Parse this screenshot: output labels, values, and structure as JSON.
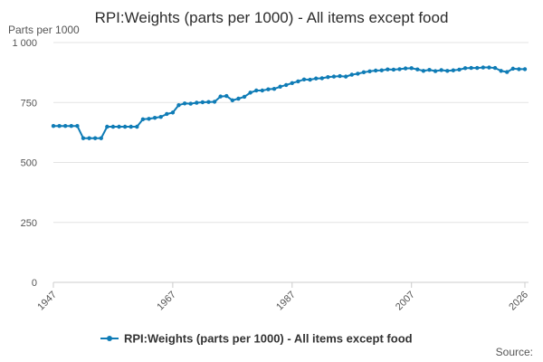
{
  "chart_data": {
    "type": "line",
    "title": "RPI:Weights (parts per 1000) - All items except food",
    "ylabel": "Parts per 1000",
    "xlabel": "",
    "xlim": [
      1947,
      2026
    ],
    "ylim": [
      0,
      1000
    ],
    "x_ticks": [
      1947,
      1967,
      1987,
      2007,
      2026
    ],
    "y_ticks": [
      0,
      250,
      500,
      750,
      1000
    ],
    "y_tick_labels": [
      "0",
      "250",
      "500",
      "750",
      "1 000"
    ],
    "grid": true,
    "legend_position": "bottom",
    "series_color": "#0f7cb6",
    "series": [
      {
        "name": "RPI:Weights (parts per 1000) - All items except food",
        "x": [
          1947,
          1948,
          1949,
          1950,
          1951,
          1952,
          1953,
          1954,
          1955,
          1956,
          1957,
          1958,
          1959,
          1960,
          1961,
          1962,
          1963,
          1964,
          1965,
          1966,
          1967,
          1968,
          1969,
          1970,
          1971,
          1972,
          1973,
          1974,
          1975,
          1976,
          1977,
          1978,
          1979,
          1980,
          1981,
          1982,
          1983,
          1984,
          1985,
          1986,
          1987,
          1988,
          1989,
          1990,
          1991,
          1992,
          1993,
          1994,
          1995,
          1996,
          1997,
          1998,
          1999,
          2000,
          2001,
          2002,
          2003,
          2004,
          2005,
          2006,
          2007,
          2008,
          2009,
          2010,
          2011,
          2012,
          2013,
          2014,
          2015,
          2016,
          2017,
          2018,
          2019,
          2020,
          2021,
          2022,
          2023,
          2024,
          2025,
          2026
        ],
        "values": [
          652,
          652,
          652,
          652,
          652,
          601,
          601,
          601,
          601,
          649,
          649,
          649,
          649,
          649,
          649,
          680,
          682,
          686,
          690,
          702,
          708,
          739,
          746,
          745,
          749,
          751,
          752,
          753,
          775,
          777,
          759,
          766,
          774,
          791,
          800,
          800,
          805,
          807,
          816,
          823,
          831,
          838,
          846,
          845,
          850,
          851,
          856,
          858,
          860,
          858,
          866,
          870,
          876,
          880,
          883,
          884,
          888,
          887,
          889,
          892,
          893,
          888,
          882,
          886,
          881,
          885,
          882,
          884,
          887,
          893,
          894,
          894,
          896,
          896,
          894,
          882,
          877,
          891,
          889,
          889
        ]
      }
    ],
    "source_label": "Source:"
  }
}
